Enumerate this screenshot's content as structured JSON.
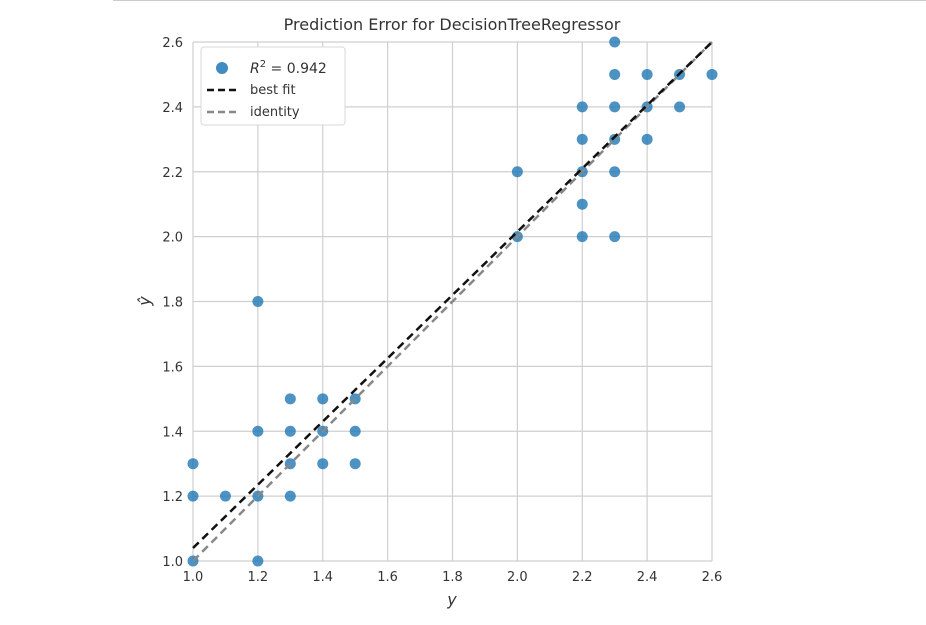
{
  "chart_data": {
    "type": "scatter",
    "title": "Prediction Error for DecisionTreeRegressor",
    "xlabel": "y",
    "ylabel": "ŷ",
    "xlim": [
      1.0,
      2.6
    ],
    "ylim": [
      1.0,
      2.6
    ],
    "grid": true,
    "legend_position": "top-left",
    "x_ticks": [
      "1.0",
      "1.2",
      "1.4",
      "1.6",
      "1.8",
      "2.0",
      "2.2",
      "2.4",
      "2.6"
    ],
    "y_ticks": [
      "1.0",
      "1.2",
      "1.4",
      "1.6",
      "1.8",
      "2.0",
      "2.2",
      "2.4",
      "2.6"
    ],
    "legend": {
      "r2_symbol": "R",
      "r2_superscript": "2",
      "r2_value": " = 0.942",
      "best_fit_label": "best fit",
      "identity_label": "identity"
    },
    "series": [
      {
        "kind": "points",
        "color": "#1f77b4",
        "points": [
          [
            1.0,
            1.0
          ],
          [
            1.0,
            1.2
          ],
          [
            1.0,
            1.3
          ],
          [
            1.1,
            1.2
          ],
          [
            1.2,
            1.0
          ],
          [
            1.2,
            1.2
          ],
          [
            1.2,
            1.4
          ],
          [
            1.2,
            1.8
          ],
          [
            1.3,
            1.2
          ],
          [
            1.3,
            1.3
          ],
          [
            1.3,
            1.4
          ],
          [
            1.3,
            1.5
          ],
          [
            1.4,
            1.3
          ],
          [
            1.4,
            1.4
          ],
          [
            1.4,
            1.5
          ],
          [
            1.5,
            1.3
          ],
          [
            1.5,
            1.4
          ],
          [
            1.5,
            1.5
          ],
          [
            2.0,
            2.0
          ],
          [
            2.0,
            2.2
          ],
          [
            2.2,
            2.0
          ],
          [
            2.2,
            2.1
          ],
          [
            2.2,
            2.2
          ],
          [
            2.2,
            2.3
          ],
          [
            2.2,
            2.4
          ],
          [
            2.3,
            2.0
          ],
          [
            2.3,
            2.2
          ],
          [
            2.3,
            2.3
          ],
          [
            2.3,
            2.4
          ],
          [
            2.3,
            2.5
          ],
          [
            2.3,
            2.6
          ],
          [
            2.4,
            2.3
          ],
          [
            2.4,
            2.4
          ],
          [
            2.4,
            2.5
          ],
          [
            2.5,
            2.4
          ],
          [
            2.5,
            2.5
          ],
          [
            2.6,
            2.5
          ]
        ]
      },
      {
        "kind": "line",
        "role": "best_fit",
        "x": [
          1.0,
          2.6
        ],
        "y": [
          1.04,
          2.6
        ],
        "color": "#111111",
        "dash": true
      },
      {
        "kind": "line",
        "role": "identity",
        "x": [
          1.0,
          2.6
        ],
        "y": [
          1.0,
          2.6
        ],
        "color": "#888888",
        "dash": true
      }
    ]
  }
}
